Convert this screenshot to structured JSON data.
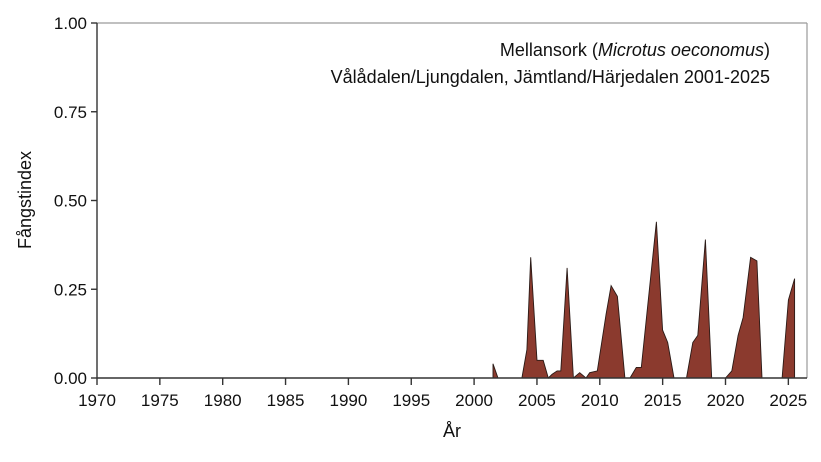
{
  "chart_data": {
    "type": "area",
    "title": "Mellansork (Microtus oeconomus)",
    "title_common_name": "Mellansork",
    "title_latin_name": "Microtus oeconomus",
    "subtitle": "Vålådalen/Ljungdalen, Jämtland/Härjedalen 2001-2025",
    "xlabel": "År",
    "ylabel": "Fångstindex",
    "xlim": [
      1970,
      2026.5
    ],
    "ylim": [
      0,
      1.0
    ],
    "x_ticks": [
      1970,
      1975,
      1980,
      1985,
      1990,
      1995,
      2000,
      2005,
      2010,
      2015,
      2020,
      2025
    ],
    "x_tick_labels": [
      "1970",
      "1975",
      "1980",
      "1985",
      "1990",
      "1995",
      "2000",
      "2005",
      "2010",
      "2015",
      "2020",
      "2025"
    ],
    "y_ticks": [
      0,
      0.25,
      0.5,
      0.75,
      1.0
    ],
    "y_tick_labels": [
      "0.00",
      "0.25",
      "0.50",
      "0.75",
      "1.00"
    ],
    "grid": false,
    "legend": null,
    "fill_color": "#8B3A2E",
    "line_color": "#2a1a16",
    "series": [
      {
        "name": "Fångstindex",
        "x": [
          2001.5,
          2001.9,
          2003.8,
          2004.2,
          2004.5,
          2005.0,
          2005.5,
          2005.9,
          2006.2,
          2006.6,
          2006.9,
          2007.4,
          2007.9,
          2008.4,
          2008.9,
          2009.2,
          2009.8,
          2010.5,
          2010.9,
          2011.4,
          2012.0,
          2012.4,
          2012.9,
          2013.3,
          2014.5,
          2015.0,
          2015.4,
          2015.9,
          2016.9,
          2017.4,
          2017.8,
          2018.4,
          2018.9,
          2020.0,
          2020.5,
          2021.0,
          2021.4,
          2022.0,
          2022.5,
          2022.9,
          2024.5,
          2025.0,
          2025.5
        ],
        "values": [
          0.04,
          0,
          0,
          0.08,
          0.34,
          0.05,
          0.05,
          0,
          0.01,
          0.02,
          0.02,
          0.31,
          0,
          0.015,
          0,
          0.015,
          0.02,
          0.18,
          0.26,
          0.23,
          0,
          0,
          0.03,
          0.03,
          0.44,
          0.135,
          0.1,
          0,
          0,
          0.1,
          0.12,
          0.39,
          0,
          0,
          0.02,
          0.12,
          0.17,
          0.34,
          0.33,
          0,
          0,
          0.22,
          0.28
        ]
      }
    ]
  }
}
